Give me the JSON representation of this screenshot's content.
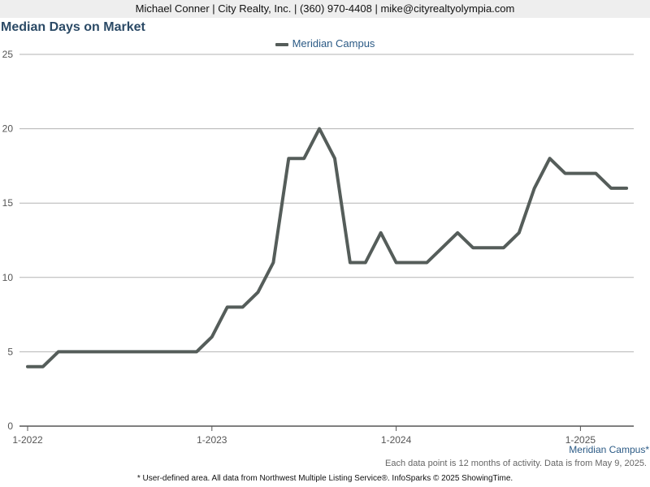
{
  "header": {
    "contact": "Michael Conner | City Realty, Inc. | (360) 970-4408 | mike@cityrealtyolympia.com"
  },
  "chart_data": {
    "type": "line",
    "title": "Median Days on Market",
    "xlabel": "",
    "ylabel": "",
    "ylim": [
      0,
      25
    ],
    "yticks": [
      "0",
      "5",
      "10",
      "15",
      "20",
      "25"
    ],
    "xtick_labels": [
      "1-2022",
      "1-2023",
      "1-2024",
      "1-2025"
    ],
    "grid": true,
    "legend_position": "top-center",
    "series": [
      {
        "name": "Meridian Campus",
        "color": "#555d5a",
        "x": [
          "2022-01",
          "2022-02",
          "2022-03",
          "2022-04",
          "2022-05",
          "2022-06",
          "2022-07",
          "2022-08",
          "2022-09",
          "2022-10",
          "2022-11",
          "2022-12",
          "2023-01",
          "2023-02",
          "2023-03",
          "2023-04",
          "2023-05",
          "2023-06",
          "2023-07",
          "2023-08",
          "2023-09",
          "2023-10",
          "2023-11",
          "2023-12",
          "2024-01",
          "2024-02",
          "2024-03",
          "2024-04",
          "2024-05",
          "2024-06",
          "2024-07",
          "2024-08",
          "2024-09",
          "2024-10",
          "2024-11",
          "2024-12",
          "2025-01",
          "2025-02",
          "2025-03",
          "2025-04"
        ],
        "values": [
          4,
          4,
          5,
          5,
          5,
          5,
          5,
          5,
          5,
          5,
          5,
          5,
          6,
          8,
          8,
          9,
          11,
          18,
          18,
          20,
          18,
          11,
          11,
          13,
          11,
          11,
          11,
          12,
          13,
          12,
          12,
          12,
          13,
          16,
          18,
          17,
          17,
          17,
          16,
          16
        ]
      }
    ]
  },
  "series_caption": "Meridian Campus*",
  "note": "Each data point is 12 months of activity. Data is from May 9, 2025.",
  "footer": "* User-defined area. All data from Northwest Multiple Listing Service®. InfoSparks © 2025 ShowingTime."
}
